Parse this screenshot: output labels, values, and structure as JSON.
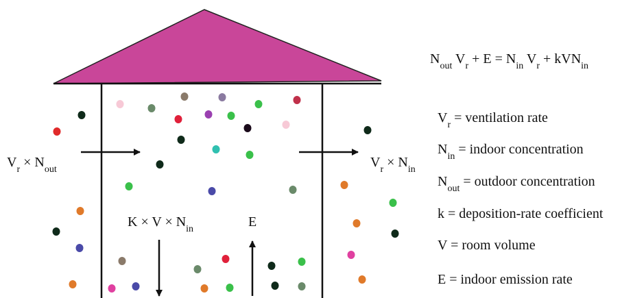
{
  "diagram": {
    "inflow_label": [
      {
        "text": "V"
      },
      {
        "text": "r",
        "sub": true
      },
      {
        "text": " × N"
      },
      {
        "text": "out",
        "sub": true
      }
    ],
    "outflow_label": [
      {
        "text": "V"
      },
      {
        "text": "r",
        "sub": true
      },
      {
        "text": " × N"
      },
      {
        "text": "in",
        "sub": true
      }
    ],
    "deposition_label": [
      {
        "text": "K × V × N"
      },
      {
        "text": "in",
        "sub": true
      }
    ],
    "emission_label": [
      {
        "text": "E"
      }
    ],
    "equation": [
      {
        "text": "N"
      },
      {
        "text": "out",
        "sub": true
      },
      {
        "text": " V"
      },
      {
        "text": "r",
        "sub": true
      },
      {
        "text": " + E = N"
      },
      {
        "text": "in",
        "sub": true
      },
      {
        "text": " V"
      },
      {
        "text": "r",
        "sub": true
      },
      {
        "text": " + kVN"
      },
      {
        "text": "in",
        "sub": true
      }
    ],
    "legend": [
      [
        {
          "text": "V"
        },
        {
          "text": "r",
          "sub": true
        },
        {
          "text": " = ventilation rate"
        }
      ],
      [
        {
          "text": "N"
        },
        {
          "text": "in",
          "sub": true
        },
        {
          "text": " = indoor concentration"
        }
      ],
      [
        {
          "text": "N"
        },
        {
          "text": "out",
          "sub": true
        },
        {
          "text": " = outdoor concentration"
        }
      ],
      [
        {
          "text": "k = deposition-rate coefficient"
        }
      ],
      [
        {
          "text": "V = room volume"
        }
      ],
      [
        {
          "text": "E = indoor emission rate"
        }
      ]
    ]
  }
}
